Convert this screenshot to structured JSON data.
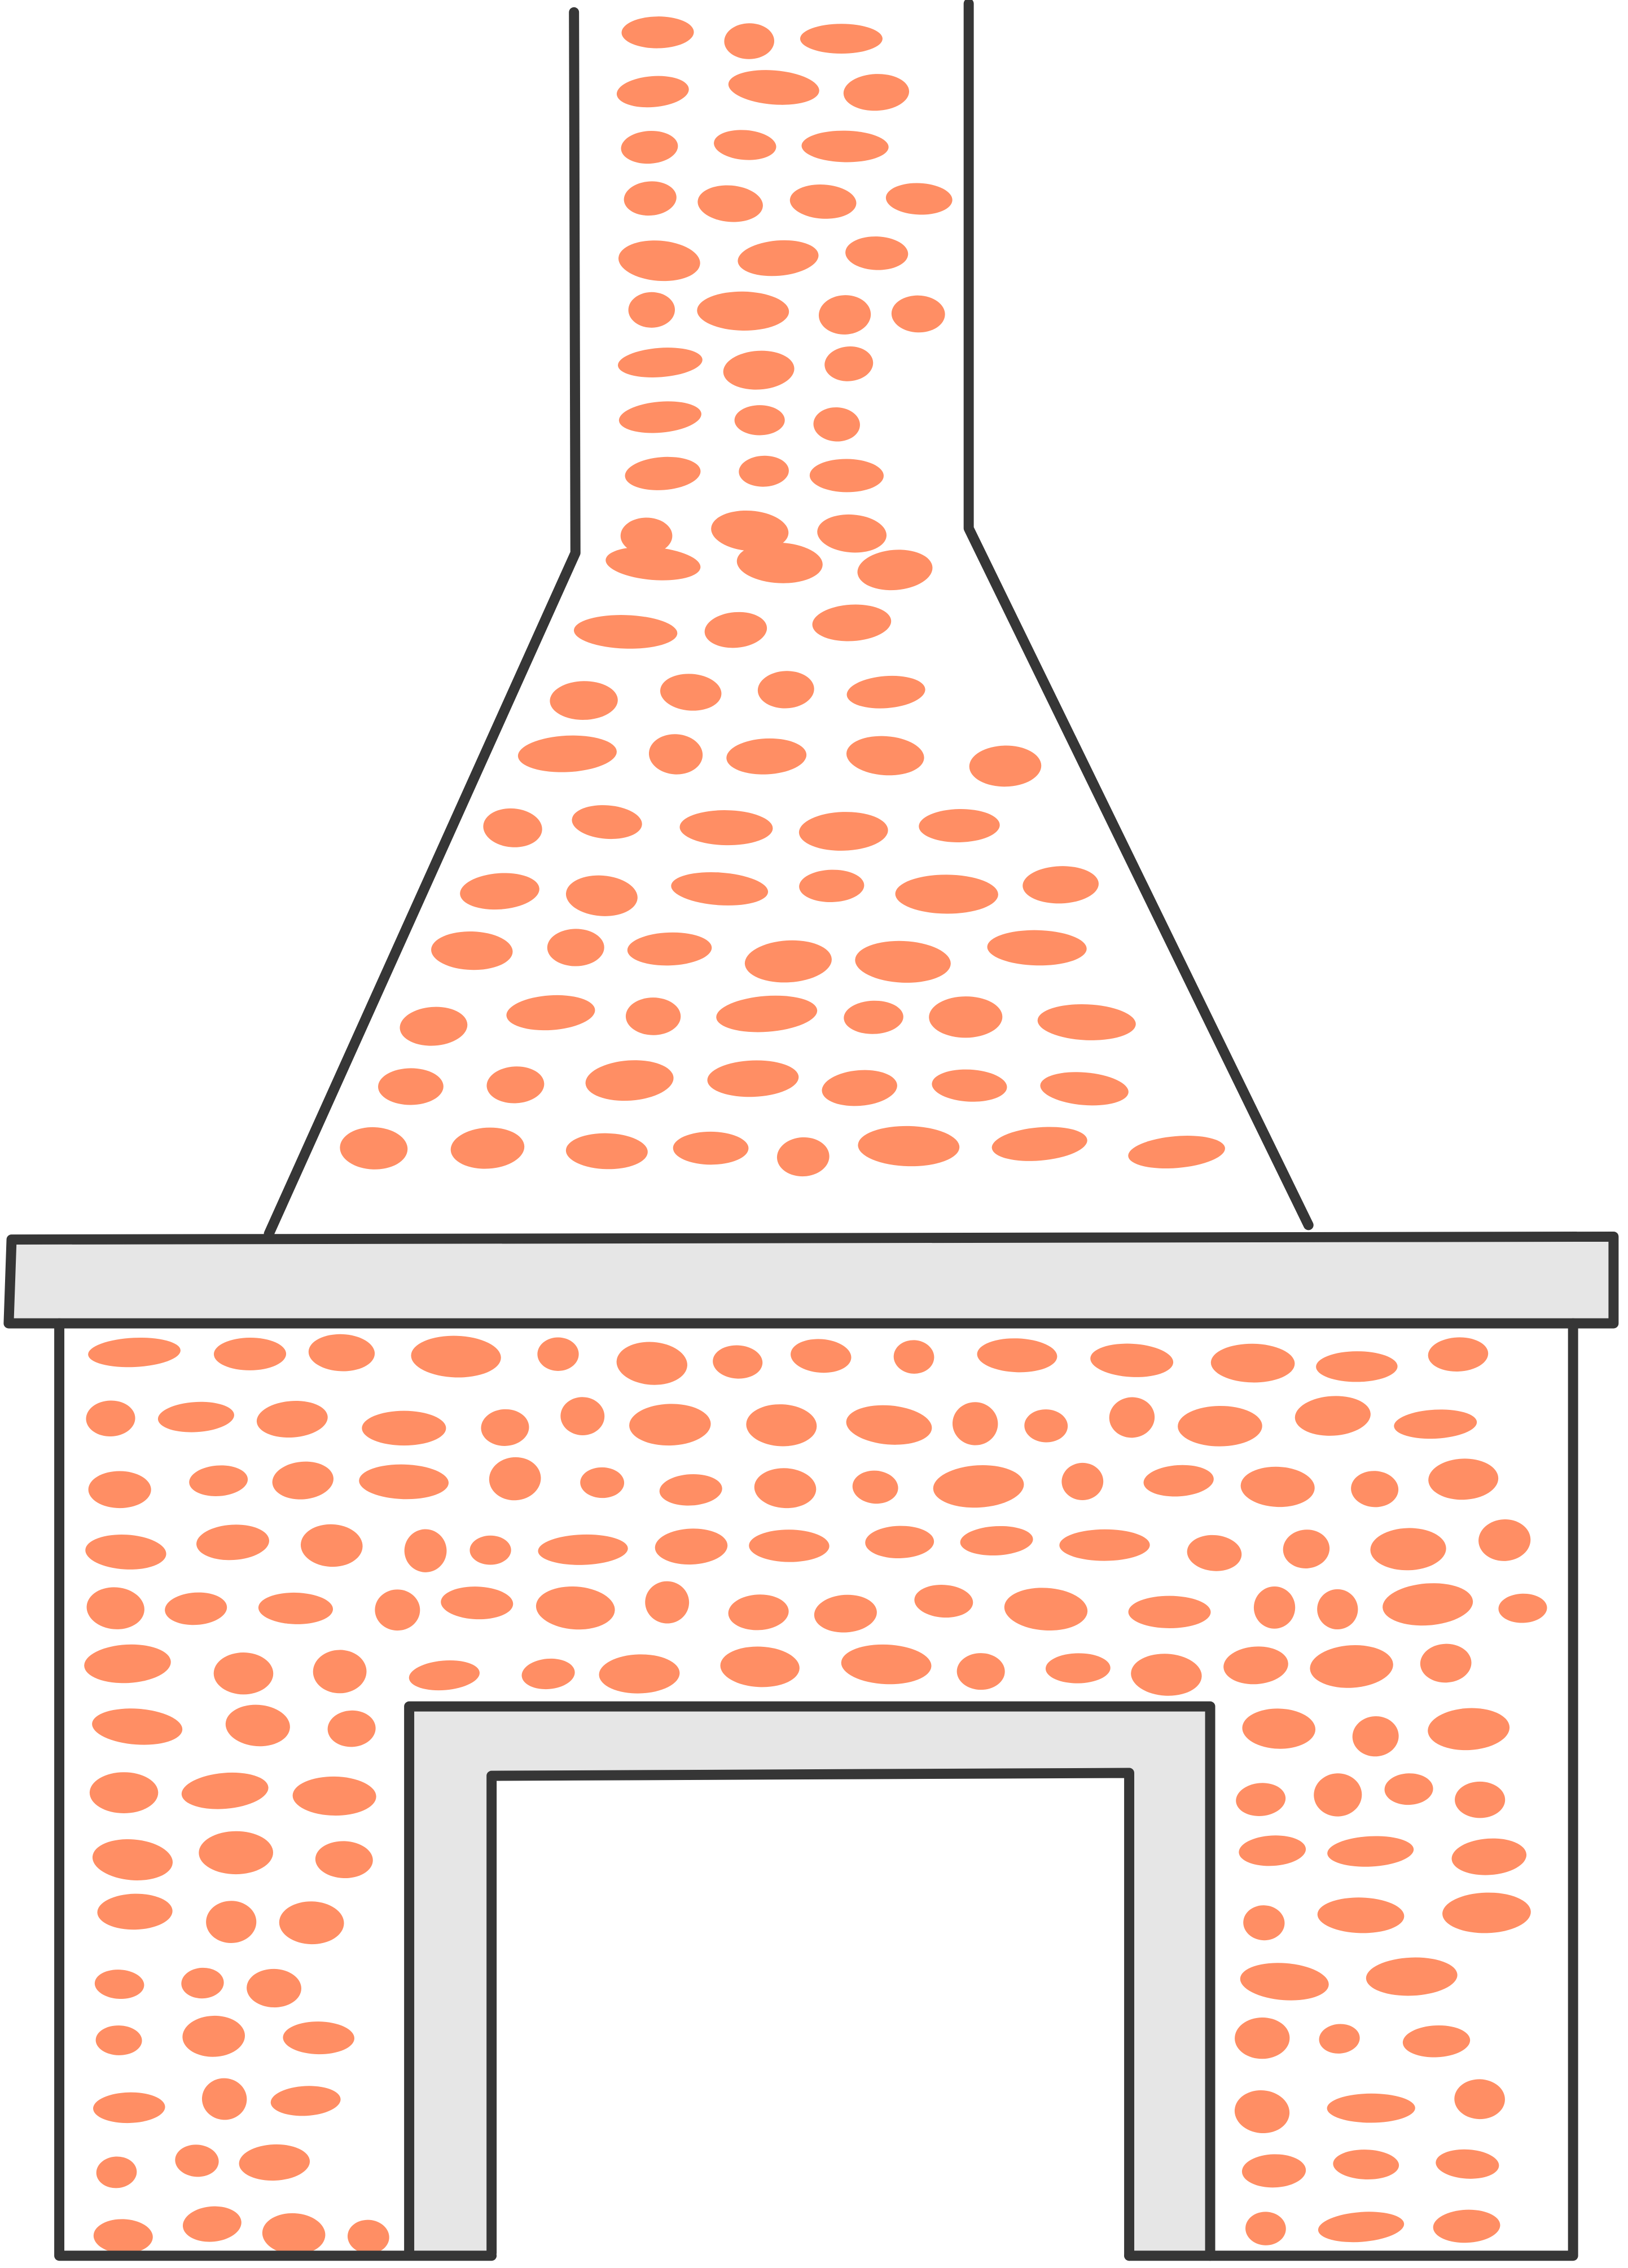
{
  "colors": {
    "background": "#ffffff",
    "outline": "#363636",
    "brick": "#FF8E64",
    "mantel": "#E6E6E6"
  },
  "icons": {
    "figure": "fireplace-with-chimney-drawing"
  }
}
